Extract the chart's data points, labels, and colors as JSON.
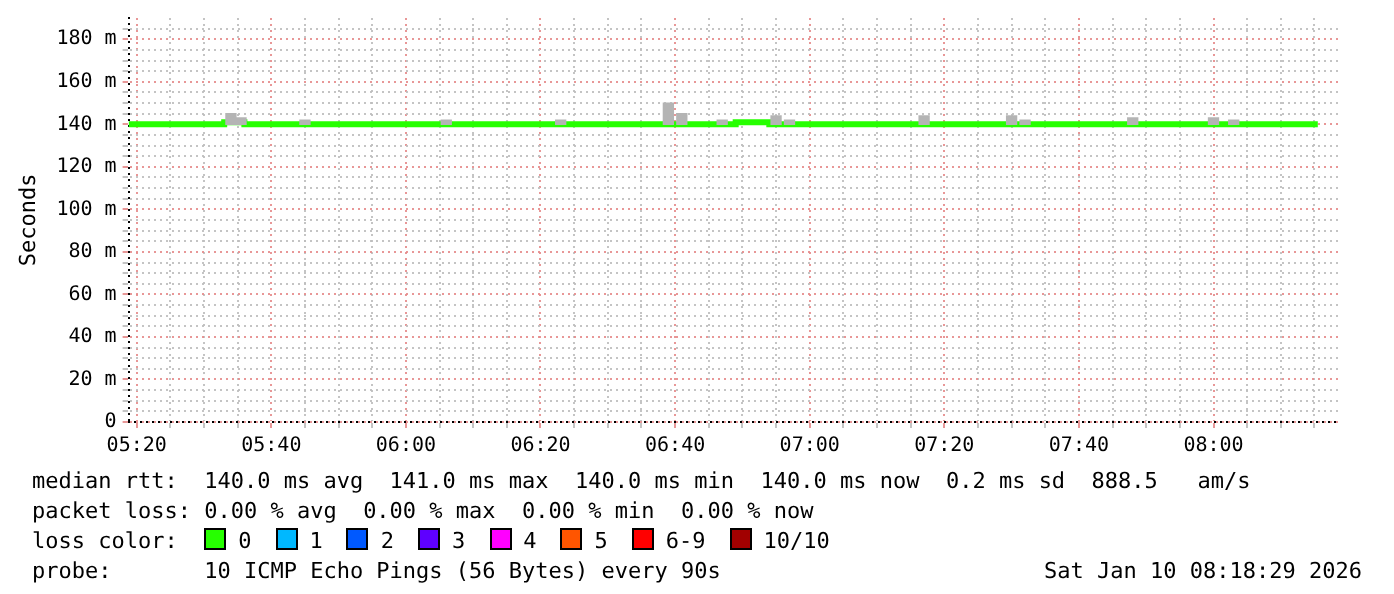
{
  "chart_data": {
    "type": "step",
    "ylabel": "Seconds",
    "legend_title": "loss color:",
    "legend": "bottom",
    "grid": true,
    "xlim": [
      5.3133,
      8.3083
    ],
    "ylim": [
      0,
      190
    ],
    "xticks": [
      {
        "value": 5.3333,
        "label": "05:20"
      },
      {
        "value": 5.4167,
        "label": null
      },
      {
        "value": 5.5,
        "label": null
      },
      {
        "value": 5.5833,
        "label": null
      },
      {
        "value": 5.6667,
        "label": "05:40"
      },
      {
        "value": 5.75,
        "label": null
      },
      {
        "value": 5.8333,
        "label": null
      },
      {
        "value": 5.9167,
        "label": null
      },
      {
        "value": 6,
        "label": "06:00"
      },
      {
        "value": 6.0833,
        "label": null
      },
      {
        "value": 6.1667,
        "label": null
      },
      {
        "value": 6.25,
        "label": null
      },
      {
        "value": 6.3333,
        "label": "06:20"
      },
      {
        "value": 6.4167,
        "label": null
      },
      {
        "value": 6.5,
        "label": null
      },
      {
        "value": 6.5833,
        "label": null
      },
      {
        "value": 6.6667,
        "label": "06:40"
      },
      {
        "value": 6.75,
        "label": null
      },
      {
        "value": 6.8333,
        "label": null
      },
      {
        "value": 6.9167,
        "label": null
      },
      {
        "value": 7,
        "label": "07:00"
      },
      {
        "value": 7.0833,
        "label": null
      },
      {
        "value": 7.1667,
        "label": null
      },
      {
        "value": 7.25,
        "label": null
      },
      {
        "value": 7.3333,
        "label": "07:20"
      },
      {
        "value": 7.4167,
        "label": null
      },
      {
        "value": 7.5,
        "label": null
      },
      {
        "value": 7.5833,
        "label": null
      },
      {
        "value": 7.6667,
        "label": "07:40"
      },
      {
        "value": 7.75,
        "label": null
      },
      {
        "value": 7.8333,
        "label": null
      },
      {
        "value": 7.9167,
        "label": null
      },
      {
        "value": 8,
        "label": "08:00"
      },
      {
        "value": 8.0833,
        "label": null
      },
      {
        "value": 8.1667,
        "label": null
      },
      {
        "value": 8.25,
        "label": null
      }
    ],
    "yticks": [
      0,
      {
        "value": 5,
        "label": null
      },
      {
        "value": 10,
        "label": null
      },
      {
        "value": 15,
        "label": null
      },
      {
        "value": 20,
        "label": "20 m"
      },
      {
        "value": 25,
        "label": null
      },
      {
        "value": 30,
        "label": null
      },
      {
        "value": 35,
        "label": null
      },
      {
        "value": 40,
        "label": "40 m"
      },
      {
        "value": 45,
        "label": null
      },
      {
        "value": 50,
        "label": null
      },
      {
        "value": 55,
        "label": null
      },
      {
        "value": 60,
        "label": "60 m"
      },
      {
        "value": 65,
        "label": null
      },
      {
        "value": 70,
        "label": null
      },
      {
        "value": 75,
        "label": null
      },
      {
        "value": 80,
        "label": "80 m"
      },
      {
        "value": 85,
        "label": null
      },
      {
        "value": 90,
        "label": null
      },
      {
        "value": 95,
        "label": null
      },
      {
        "value": 100,
        "label": "100 m"
      },
      {
        "value": 105,
        "label": null
      },
      {
        "value": 110,
        "label": null
      },
      {
        "value": 115,
        "label": null
      },
      {
        "value": 120,
        "label": "120 m"
      },
      {
        "value": 125,
        "label": null
      },
      {
        "value": 130,
        "label": null
      },
      {
        "value": 135,
        "label": null
      },
      {
        "value": 140,
        "label": "140 m"
      },
      {
        "value": 145,
        "label": null
      },
      {
        "value": 150,
        "label": null
      },
      {
        "value": 155,
        "label": null
      },
      {
        "value": 160,
        "label": "160 m"
      },
      {
        "value": 165,
        "label": null
      },
      {
        "value": 170,
        "label": null
      },
      {
        "value": 175,
        "label": null
      },
      {
        "value": 180,
        "label": "180 m"
      },
      {
        "value": 185,
        "label": null
      }
    ],
    "series": [
      {
        "type": "bar",
        "color": "#b4b4b4",
        "x": [
          5.5667,
          5.5917,
          5.75,
          6.1,
          6.3833,
          6.65,
          6.6833,
          6.7833,
          6.9167,
          6.95,
          7.2833,
          7.5,
          7.5333,
          7.8,
          8.0,
          8.05
        ],
        "base": [
          140,
          140,
          140,
          140,
          140,
          140,
          140,
          140,
          140,
          140,
          140,
          140,
          140,
          140,
          140,
          140
        ],
        "values": [
          5,
          3,
          2,
          2,
          2,
          10,
          5,
          2,
          4,
          2,
          4,
          4,
          2,
          3,
          3,
          2
        ]
      },
      {
        "name": "0",
        "color": "#26ff00",
        "x": [
          5.3133,
          5.55,
          5.6,
          6.8167,
          6.9,
          8.2583
        ],
        "values": [
          140,
          141,
          140,
          141,
          140,
          140
        ]
      },
      {
        "name": "1",
        "color": "#00b8ff"
      },
      {
        "name": "2",
        "color": "#0059ff"
      },
      {
        "name": "3",
        "color": "#5e00ff"
      },
      {
        "name": "4",
        "color": "#ff00ff"
      },
      {
        "name": "5",
        "color": "#ff5500"
      },
      {
        "name": "6-9",
        "color": "#ff0000"
      },
      {
        "name": "10/10",
        "color": "#a10000"
      }
    ],
    "annotations": [
      "median rtt:  140.0 ms avg  141.0 ms max  140.0 ms min  140.0 ms now  0.2 ms sd  888.5   am/s",
      "packet loss: 0.00 % avg  0.00 % max  0.00 % min  0.00 % now",
      "probe:       10 ICMP Echo Pings (56 Bytes) every 90s",
      "Sat Jan 10 08:18:29 2026"
    ]
  }
}
